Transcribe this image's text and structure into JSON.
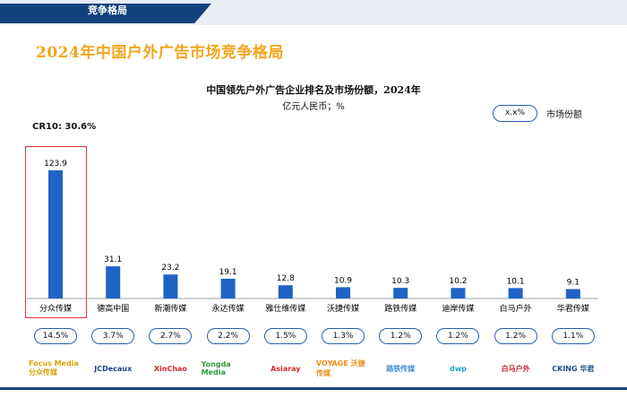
{
  "header": {
    "tab_label": "竞争格局"
  },
  "page_title": "2024年中国户外广告市场竞争格局",
  "chart_title": "中国领先户外广告企业排名及市场份额，2024年",
  "chart_subtitle": "亿元人民币；%",
  "legend": {
    "oval_text": "x.x%",
    "label": "市场份额"
  },
  "cr10": "CR10: 30.6%",
  "chart_data": {
    "type": "bar",
    "title": "中国领先户外广告企业排名及市场份额，2024年",
    "ylabel": "亿元人民币；%",
    "categories": [
      "分众传媒",
      "德高中国",
      "新潮传媒",
      "永达传媒",
      "雅仕维传媒",
      "沃捷传媒",
      "路铁传媒",
      "迪岸传媒",
      "白马户外",
      "华君传媒"
    ],
    "values": [
      123.9,
      31.1,
      23.2,
      19.1,
      12.8,
      10.9,
      10.3,
      10.2,
      10.1,
      9.1
    ],
    "value_labels": [
      "123.9",
      "31.1",
      "23.2",
      "19.1",
      "12.8",
      "10.9",
      "10.3",
      "10.2",
      "10.1",
      "9.1"
    ],
    "market_share": [
      "14.5%",
      "3.7%",
      "2.7%",
      "2.2%",
      "1.5%",
      "1.3%",
      "1.2%",
      "1.2%",
      "1.2%",
      "1.1%"
    ],
    "ylim": [
      0,
      130
    ],
    "grid": false,
    "bar_color": "#1f63c4",
    "highlight_color": "#d63b3b"
  },
  "logos": [
    {
      "text": "Focus Media 分众传媒",
      "icon": "focus-media-logo",
      "color": "#d9a300"
    },
    {
      "text": "JCDecaux",
      "icon": "jcdecaux-logo",
      "color": "#1a3e8c"
    },
    {
      "text": "XinChao",
      "icon": "xinchao-logo",
      "color": "#d62828"
    },
    {
      "text": "Yongda Media",
      "icon": "yongda-logo",
      "color": "#2e9b3b"
    },
    {
      "text": "Asiaray",
      "icon": "asiaray-logo",
      "color": "#d62828"
    },
    {
      "text": "VOYAGE 沃捷传媒",
      "icon": "voyage-logo",
      "color": "#f08c1a"
    },
    {
      "text": "路铁传媒",
      "icon": "lutie-logo",
      "color": "#3a8fd6"
    },
    {
      "text": "dwp",
      "icon": "dwp-logo",
      "color": "#1aa0c8"
    },
    {
      "text": "白马户外",
      "icon": "whitehorse-logo",
      "color": "#c8202a"
    },
    {
      "text": "CKING 华君",
      "icon": "cking-logo",
      "color": "#1a4f8c"
    }
  ]
}
